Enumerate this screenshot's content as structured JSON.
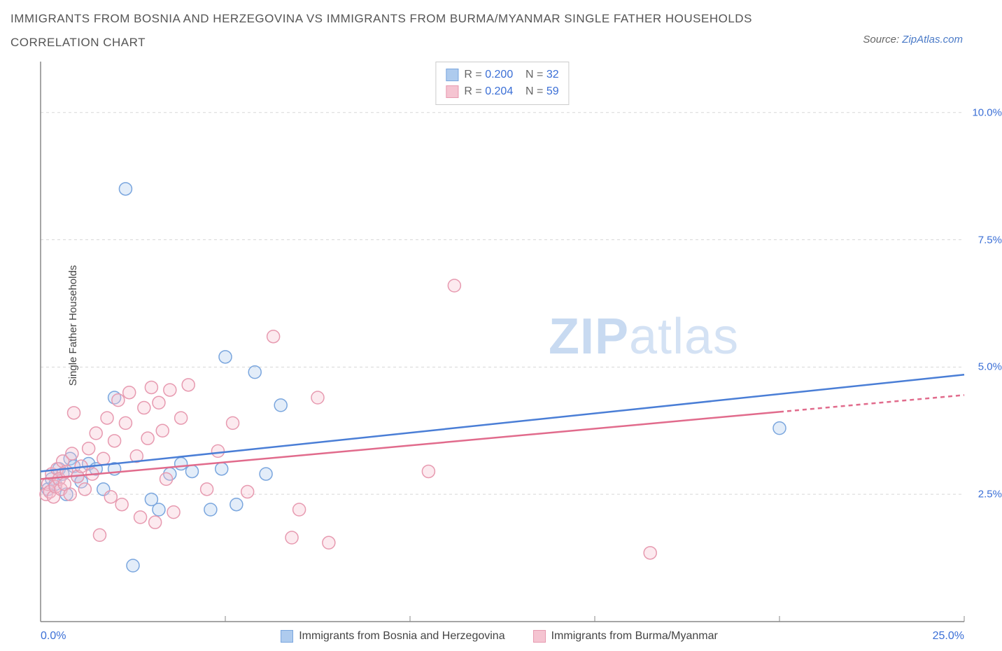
{
  "title_line1": "IMMIGRANTS FROM BOSNIA AND HERZEGOVINA VS IMMIGRANTS FROM BURMA/MYANMAR SINGLE FATHER HOUSEHOLDS",
  "title_line2": "CORRELATION CHART",
  "source_prefix": "Source: ",
  "source_link": "ZipAtlas.com",
  "y_axis_label": "Single Father Households",
  "watermark_strong": "ZIP",
  "watermark_light": "atlas",
  "chart": {
    "type": "scatter_with_regression",
    "xlim": [
      0,
      25
    ],
    "ylim": [
      0,
      11
    ],
    "x_ticks_minor": [
      0,
      5,
      10,
      15,
      20,
      25
    ],
    "y_ticks": [
      2.5,
      5.0,
      7.5,
      10.0
    ],
    "y_tick_labels": [
      "2.5%",
      "5.0%",
      "7.5%",
      "10.0%"
    ],
    "x_min_label": "0.0%",
    "x_max_label": "25.0%",
    "grid_color": "#d8d8d8",
    "axis_color": "#888888",
    "background_color": "#ffffff",
    "marker_radius": 9,
    "marker_stroke_width": 1.5,
    "marker_fill_opacity": 0.35,
    "trend_line_width": 2.5,
    "series": [
      {
        "id": "bosnia",
        "label": "Immigrants from Bosnia and Herzegovina",
        "color_stroke": "#7aa6de",
        "color_fill": "#aecbee",
        "line_color": "#4a7ed6",
        "R": "0.200",
        "N": "32",
        "trend": {
          "x1": 0,
          "y1": 2.95,
          "x2": 25,
          "y2": 4.85
        },
        "trend_dash_from_x": null,
        "points": [
          [
            0.2,
            2.6
          ],
          [
            0.3,
            2.8
          ],
          [
            0.4,
            2.7
          ],
          [
            0.5,
            3.0
          ],
          [
            0.6,
            2.9
          ],
          [
            0.7,
            2.5
          ],
          [
            0.8,
            3.2
          ],
          [
            0.9,
            3.05
          ],
          [
            1.0,
            2.85
          ],
          [
            1.1,
            2.75
          ],
          [
            1.3,
            3.1
          ],
          [
            1.5,
            3.0
          ],
          [
            1.7,
            2.6
          ],
          [
            2.0,
            4.4
          ],
          [
            2.0,
            3.0
          ],
          [
            2.3,
            8.5
          ],
          [
            2.5,
            1.1
          ],
          [
            3.0,
            2.4
          ],
          [
            3.2,
            2.2
          ],
          [
            3.5,
            2.9
          ],
          [
            3.8,
            3.1
          ],
          [
            4.1,
            2.95
          ],
          [
            4.6,
            2.2
          ],
          [
            4.9,
            3.0
          ],
          [
            5.0,
            5.2
          ],
          [
            5.3,
            2.3
          ],
          [
            5.8,
            4.9
          ],
          [
            6.1,
            2.9
          ],
          [
            6.5,
            4.25
          ],
          [
            20.0,
            3.8
          ]
        ]
      },
      {
        "id": "burma",
        "label": "Immigrants from Burma/Myanmar",
        "color_stroke": "#e79ab0",
        "color_fill": "#f5c4d1",
        "line_color": "#e16b8c",
        "R": "0.204",
        "N": "59",
        "trend": {
          "x1": 0,
          "y1": 2.8,
          "x2": 25,
          "y2": 4.45
        },
        "trend_dash_from_x": 20,
        "points": [
          [
            0.15,
            2.5
          ],
          [
            0.2,
            2.7
          ],
          [
            0.25,
            2.55
          ],
          [
            0.3,
            2.9
          ],
          [
            0.35,
            2.45
          ],
          [
            0.4,
            2.65
          ],
          [
            0.45,
            3.0
          ],
          [
            0.5,
            2.8
          ],
          [
            0.55,
            2.6
          ],
          [
            0.6,
            3.15
          ],
          [
            0.65,
            2.7
          ],
          [
            0.7,
            2.95
          ],
          [
            0.8,
            2.5
          ],
          [
            0.85,
            3.3
          ],
          [
            0.9,
            4.1
          ],
          [
            1.0,
            2.85
          ],
          [
            1.1,
            3.05
          ],
          [
            1.2,
            2.6
          ],
          [
            1.3,
            3.4
          ],
          [
            1.4,
            2.9
          ],
          [
            1.5,
            3.7
          ],
          [
            1.6,
            1.7
          ],
          [
            1.7,
            3.2
          ],
          [
            1.8,
            4.0
          ],
          [
            1.9,
            2.45
          ],
          [
            2.0,
            3.55
          ],
          [
            2.1,
            4.35
          ],
          [
            2.2,
            2.3
          ],
          [
            2.3,
            3.9
          ],
          [
            2.4,
            4.5
          ],
          [
            2.6,
            3.25
          ],
          [
            2.7,
            2.05
          ],
          [
            2.8,
            4.2
          ],
          [
            2.9,
            3.6
          ],
          [
            3.0,
            4.6
          ],
          [
            3.1,
            1.95
          ],
          [
            3.2,
            4.3
          ],
          [
            3.3,
            3.75
          ],
          [
            3.4,
            2.8
          ],
          [
            3.5,
            4.55
          ],
          [
            3.6,
            2.15
          ],
          [
            3.8,
            4.0
          ],
          [
            4.0,
            4.65
          ],
          [
            4.5,
            2.6
          ],
          [
            4.8,
            3.35
          ],
          [
            5.2,
            3.9
          ],
          [
            5.6,
            2.55
          ],
          [
            6.3,
            5.6
          ],
          [
            6.8,
            1.65
          ],
          [
            7.0,
            2.2
          ],
          [
            7.5,
            4.4
          ],
          [
            7.8,
            1.55
          ],
          [
            10.5,
            2.95
          ],
          [
            11.2,
            6.6
          ],
          [
            16.5,
            1.35
          ]
        ]
      }
    ]
  },
  "legend_top": {
    "R_label": "R = ",
    "N_label": "N = "
  }
}
